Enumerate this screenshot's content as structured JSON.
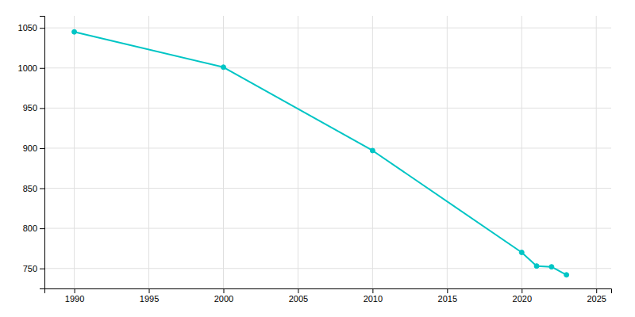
{
  "chart_data": {
    "type": "line",
    "x": [
      1990,
      2000,
      2010,
      2020,
      2021,
      2022,
      2023
    ],
    "values": [
      1045,
      1001,
      897,
      770,
      753,
      752,
      742
    ],
    "color": "#00C5C5",
    "marker": "circle",
    "xlim": [
      1988,
      2026
    ],
    "ylim": [
      725,
      1065
    ],
    "xticks": [
      1990,
      1995,
      2000,
      2005,
      2010,
      2015,
      2020,
      2025
    ],
    "yticks": [
      750,
      800,
      850,
      900,
      950,
      1000,
      1050
    ],
    "grid": true
  }
}
